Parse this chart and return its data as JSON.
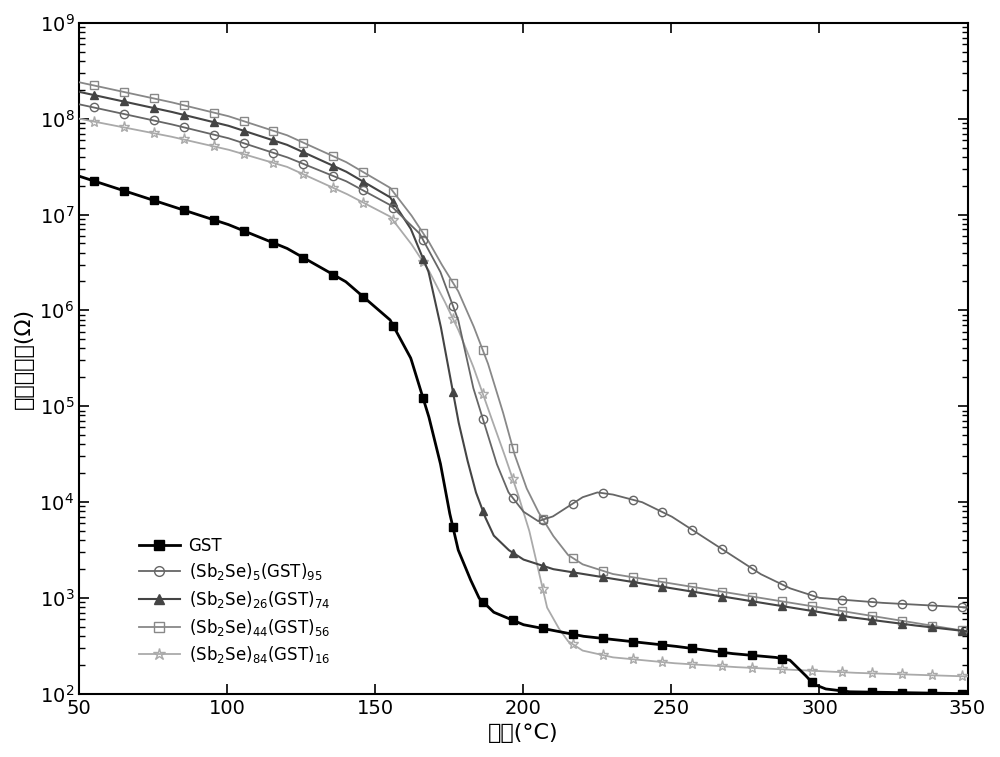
{
  "xlabel": "温度(°C)",
  "ylabel": "归一化电阻(Ω)",
  "xlim": [
    50,
    350
  ],
  "ylim_low": 100,
  "ylim_high": 1000000000,
  "xticks": [
    50,
    100,
    150,
    200,
    250,
    300,
    350
  ],
  "colors": [
    "#000000",
    "#666666",
    "#444444",
    "#888888",
    "#aaaaaa"
  ],
  "markers": [
    "s",
    "o",
    "^",
    "s",
    "*"
  ],
  "marker_fills": [
    "black",
    "none",
    "black",
    "none",
    "none"
  ],
  "marker_sizes": [
    6,
    6,
    6,
    6,
    8
  ],
  "linewidths": [
    2.0,
    1.3,
    1.5,
    1.3,
    1.3
  ],
  "legend_labels": [
    "GST",
    "(Sb$_2$Se)$_5$(GST)$_{95}$",
    "(Sb$_2$Se)$_{26}$(GST)$_{74}$",
    "(Sb$_2$Se)$_{44}$(GST)$_{56}$",
    "(Sb$_2$Se)$_{84}$(GST)$_{16}$"
  ],
  "figsize": [
    10.0,
    7.57
  ],
  "dpi": 100
}
